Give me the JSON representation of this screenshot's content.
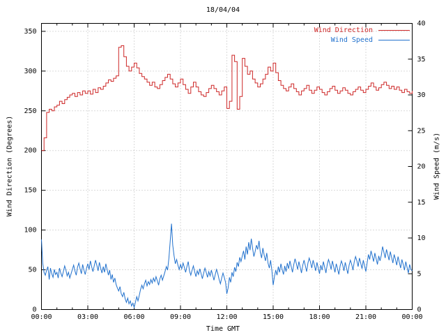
{
  "title": "18/04/04",
  "axes": {
    "x": {
      "label": "Time GMT",
      "tick_hours": [
        0,
        3,
        6,
        9,
        12,
        15,
        18,
        21,
        24
      ],
      "tick_labels": [
        "00:00",
        "03:00",
        "06:00",
        "09:00",
        "12:00",
        "15:00",
        "18:00",
        "21:00",
        "00:00"
      ],
      "range_hours": [
        0,
        24
      ],
      "minor_tick_every_hours": 1
    },
    "y_left": {
      "label": "Wind Direction (Degrees)",
      "ticks": [
        0,
        50,
        100,
        150,
        200,
        250,
        300,
        350
      ],
      "range": [
        0,
        360
      ]
    },
    "y_right": {
      "label": "Wind Speed (m/s)",
      "ticks": [
        0,
        5,
        10,
        15,
        20,
        25,
        30,
        35,
        40
      ],
      "range": [
        0,
        40
      ]
    }
  },
  "legend": [
    {
      "label": "Wind Direction",
      "color": "#cd2626"
    },
    {
      "label": "Wind Speed",
      "color": "#2171cd"
    }
  ],
  "colors": {
    "direction": "#cd2626",
    "speed": "#2171cd",
    "grid": "#b4b4b4",
    "border": "#000000"
  },
  "chart_data": {
    "type": "line",
    "title": "18/04/04",
    "xlabel": "Time GMT",
    "ylabel_left": "Wind Direction (Degrees)",
    "ylabel_right": "Wind Speed (m/s)",
    "xlim_hours": [
      0,
      24
    ],
    "ylim_left": [
      0,
      360
    ],
    "ylim_right": [
      0,
      40
    ],
    "grid": true,
    "legend_position": "top-right",
    "series": [
      {
        "name": "Wind Direction",
        "axis": "left",
        "units": "degrees",
        "style": "steps",
        "color": "#cd2626",
        "x_step_minutes": 10,
        "values": [
          200,
          216,
          248,
          252,
          250,
          255,
          257,
          262,
          259,
          264,
          267,
          270,
          272,
          268,
          273,
          270,
          275,
          272,
          275,
          271,
          277,
          273,
          279,
          277,
          281,
          285,
          289,
          287,
          291,
          294,
          330,
          332,
          318,
          306,
          300,
          305,
          310,
          304,
          297,
          293,
          290,
          286,
          282,
          286,
          280,
          278,
          283,
          288,
          292,
          296,
          290,
          284,
          280,
          285,
          290,
          283,
          277,
          272,
          280,
          286,
          280,
          274,
          270,
          268,
          273,
          278,
          282,
          278,
          274,
          270,
          275,
          280,
          253,
          262,
          320,
          312,
          252,
          268,
          316,
          306,
          296,
          300,
          290,
          285,
          280,
          284,
          290,
          296,
          305,
          300,
          310,
          298,
          288,
          282,
          278,
          275,
          280,
          284,
          278,
          274,
          270,
          275,
          278,
          282,
          276,
          272,
          276,
          280,
          277,
          273,
          270,
          274,
          278,
          281,
          276,
          272,
          275,
          279,
          276,
          272,
          270,
          274,
          277,
          280,
          276,
          273,
          277,
          281,
          285,
          280,
          276,
          279,
          283,
          286,
          282,
          278,
          281,
          277,
          280,
          276,
          273,
          277,
          274,
          272,
          275
        ]
      },
      {
        "name": "Wind Speed",
        "axis": "right",
        "units": "m/s",
        "style": "line",
        "color": "#2171cd",
        "x_step_minutes": 5,
        "values": [
          9.8,
          6.5,
          5.2,
          4.8,
          5.5,
          6.0,
          4.2,
          5.8,
          5.0,
          4.5,
          5.6,
          4.9,
          5.2,
          4.4,
          5.8,
          5.1,
          4.6,
          5.3,
          6.1,
          5.5,
          4.7,
          5.2,
          4.4,
          5.0,
          5.6,
          6.2,
          5.4,
          4.8,
          5.9,
          6.5,
          5.7,
          5.0,
          6.3,
          5.5,
          4.9,
          5.8,
          6.4,
          5.6,
          6.8,
          6.0,
          5.3,
          6.1,
          6.9,
          6.2,
          5.4,
          6.6,
          5.8,
          5.1,
          6.0,
          5.2,
          6.4,
          5.6,
          4.8,
          5.5,
          4.2,
          4.9,
          3.8,
          4.4,
          3.5,
          3.0,
          2.6,
          3.2,
          2.2,
          1.8,
          2.4,
          1.5,
          1.0,
          1.6,
          0.8,
          1.2,
          0.5,
          0.9,
          0.3,
          1.0,
          1.8,
          1.2,
          2.0,
          2.8,
          3.4,
          2.9,
          3.6,
          4.1,
          3.3,
          3.9,
          3.5,
          4.2,
          3.7,
          4.4,
          3.9,
          4.6,
          4.0,
          3.4,
          4.3,
          4.8,
          4.1,
          4.7,
          5.3,
          6.0,
          5.5,
          7.2,
          9.5,
          12.0,
          9.0,
          7.5,
          6.4,
          7.0,
          6.2,
          5.6,
          6.3,
          5.7,
          6.5,
          5.9,
          5.2,
          6.0,
          6.7,
          5.4,
          4.8,
          5.5,
          6.1,
          5.3,
          4.6,
          5.4,
          4.9,
          5.7,
          5.0,
          4.3,
          5.1,
          5.8,
          5.2,
          4.5,
          5.3,
          4.7,
          5.5,
          4.8,
          4.1,
          4.9,
          5.6,
          5.0,
          4.2,
          3.6,
          4.4,
          5.1,
          4.5,
          3.8,
          2.2,
          3.0,
          4.5,
          3.8,
          5.2,
          4.6,
          5.9,
          5.3,
          6.6,
          6.0,
          7.3,
          6.7,
          7.5,
          8.2,
          7.0,
          8.8,
          7.7,
          9.4,
          8.3,
          9.9,
          8.6,
          7.4,
          8.1,
          9.0,
          8.4,
          9.6,
          8.0,
          7.2,
          8.6,
          7.6,
          6.8,
          7.9,
          6.5,
          5.8,
          6.9,
          5.4,
          3.4,
          4.6,
          5.5,
          4.8,
          6.0,
          5.2,
          6.4,
          5.6,
          4.9,
          6.1,
          5.3,
          6.5,
          5.7,
          6.8,
          6.0,
          5.2,
          6.3,
          7.1,
          6.4,
          5.6,
          6.7,
          5.9,
          5.1,
          6.2,
          6.9,
          6.1,
          5.3,
          6.5,
          7.2,
          6.6,
          5.8,
          6.9,
          6.2,
          5.4,
          6.6,
          5.8,
          5.0,
          6.2,
          5.5,
          6.7,
          5.9,
          5.1,
          6.3,
          7.0,
          6.4,
          5.6,
          6.8,
          6.0,
          5.2,
          6.4,
          5.7,
          4.9,
          6.1,
          6.8,
          6.2,
          5.4,
          6.6,
          5.8,
          5.0,
          6.2,
          6.9,
          6.3,
          5.5,
          6.7,
          7.4,
          6.8,
          6.0,
          7.2,
          6.5,
          5.7,
          6.9,
          6.1,
          5.3,
          6.5,
          7.7,
          7.0,
          8.2,
          7.5,
          6.7,
          7.9,
          7.1,
          6.3,
          7.5,
          6.8,
          7.6,
          8.8,
          8.0,
          7.2,
          8.4,
          7.7,
          6.9,
          8.1,
          7.3,
          6.5,
          7.7,
          7.0,
          6.2,
          7.4,
          6.6,
          5.8,
          7.0,
          6.3,
          5.5,
          6.7,
          5.9,
          5.1,
          6.3,
          5.6,
          5.4
        ]
      }
    ]
  }
}
